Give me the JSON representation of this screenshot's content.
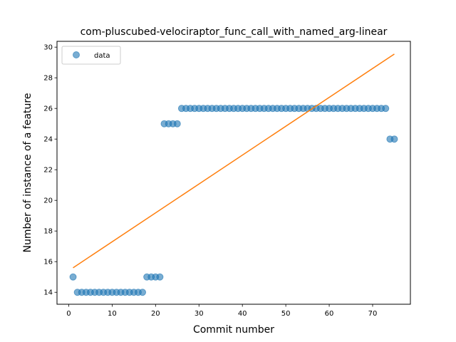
{
  "chart_data": {
    "type": "scatter",
    "title": "com-pluscubed-velociraptor_func_call_with_named_arg-linear",
    "xlabel": "Commit number",
    "ylabel": "Number of instance of a feature",
    "xlim": [
      -2.7,
      78.7
    ],
    "ylim": [
      13.22,
      30.38
    ],
    "xticks": [
      0,
      10,
      20,
      30,
      40,
      50,
      60,
      70
    ],
    "yticks": [
      14,
      16,
      18,
      20,
      22,
      24,
      26,
      28,
      30
    ],
    "grid": false,
    "legend": {
      "placement": "top-left",
      "entries": [
        "data"
      ]
    },
    "series": [
      {
        "name": "data",
        "kind": "scatter",
        "color": "#1f77b4",
        "x": [
          1,
          2,
          3,
          4,
          5,
          6,
          7,
          8,
          9,
          10,
          11,
          12,
          13,
          14,
          15,
          16,
          17,
          18,
          19,
          20,
          21,
          22,
          23,
          24,
          25,
          26,
          27,
          28,
          29,
          30,
          31,
          32,
          33,
          34,
          35,
          36,
          37,
          38,
          39,
          40,
          41,
          42,
          43,
          44,
          45,
          46,
          47,
          48,
          49,
          50,
          51,
          52,
          53,
          54,
          55,
          56,
          57,
          58,
          59,
          60,
          61,
          62,
          63,
          64,
          65,
          66,
          67,
          68,
          69,
          70,
          71,
          72,
          73,
          74,
          75
        ],
        "y": [
          15,
          14,
          14,
          14,
          14,
          14,
          14,
          14,
          14,
          14,
          14,
          14,
          14,
          14,
          14,
          14,
          14,
          15,
          15,
          15,
          15,
          25,
          25,
          25,
          25,
          26,
          26,
          26,
          26,
          26,
          26,
          26,
          26,
          26,
          26,
          26,
          26,
          26,
          26,
          26,
          26,
          26,
          26,
          26,
          26,
          26,
          26,
          26,
          26,
          26,
          26,
          26,
          26,
          26,
          26,
          26,
          26,
          26,
          26,
          26,
          26,
          26,
          26,
          26,
          26,
          26,
          26,
          26,
          26,
          26,
          26,
          26,
          26,
          24,
          24
        ]
      },
      {
        "kind": "line",
        "color": "#ff7f0e",
        "x": [
          1,
          75
        ],
        "y": [
          15.6,
          29.55
        ]
      }
    ]
  }
}
